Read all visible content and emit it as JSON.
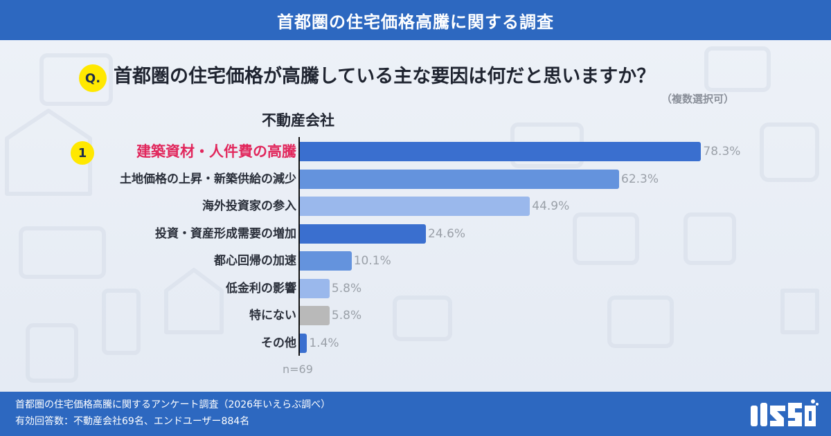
{
  "header": {
    "title": "首都圏の住宅価格高騰に関する調査"
  },
  "question": {
    "badge": "Q.",
    "text": "首都圏の住宅価格が高騰している主な要因は何だと思いますか？",
    "note": "（複数選択可）"
  },
  "chart_data": {
    "type": "bar",
    "orientation": "horizontal",
    "segment_label": "不動産会社",
    "categories": [
      "建築資材・人件費の高騰",
      "土地価格の上昇・新築供給の減少",
      "海外投資家の参入",
      "投資・資産形成需要の増加",
      "都心回帰の加速",
      "低金利の影響",
      "特にない",
      "その他"
    ],
    "values": [
      78.3,
      62.3,
      44.9,
      24.6,
      10.1,
      5.8,
      5.8,
      1.4
    ],
    "value_labels": [
      "78.3%",
      "62.3%",
      "44.9%",
      "24.6%",
      "10.1%",
      "5.8%",
      "5.8%",
      "1.4%"
    ],
    "bar_colors": [
      "#3a6fcf",
      "#6493dd",
      "#9ab8ec",
      "#3a6fcf",
      "#6493dd",
      "#9ab8ec",
      "#b9b9b9",
      "#3a6fcf"
    ],
    "rank_badge": "1",
    "highlight_index": 0,
    "highlight_color": "#e1275c",
    "n_label": "n=69",
    "xlim": [
      0,
      100
    ]
  },
  "footer": {
    "line1": "首都圏の住宅価格高騰に関するアンケート調査（2026年いえらぶ調べ）",
    "line2": "有効回答数：不動産会社69名、エンドユーザー884名"
  },
  "logo": {
    "icon": "ierabu-logo"
  },
  "colors": {
    "brand": "#2d68c0",
    "badge": "#ffe800",
    "highlight": "#e1275c"
  }
}
